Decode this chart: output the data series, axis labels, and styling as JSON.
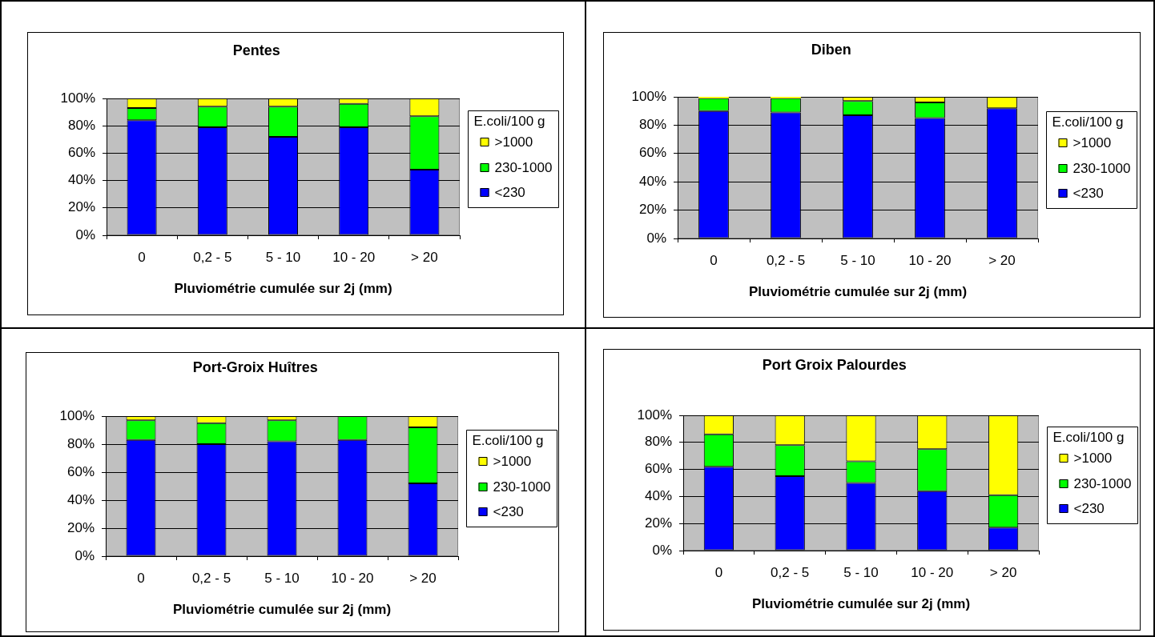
{
  "chart_data": [
    {
      "type": "bar",
      "title": "Pentes",
      "xlabel": "Pluviométrie cumulée sur 2j (mm)",
      "legend_title": "E.coli/100 g",
      "categories": [
        "0",
        "0,2 - 5",
        "5 - 10",
        "10 - 20",
        "> 20"
      ],
      "series": [
        {
          "name": "<230",
          "color": "#0000ff",
          "values": [
            84,
            79,
            72,
            79,
            48
          ]
        },
        {
          "name": "230-1000",
          "color": "#00ff00",
          "values": [
            9,
            15,
            22,
            17,
            39
          ]
        },
        {
          "name": ">1000",
          "color": "#ffff00",
          "values": [
            7,
            6,
            6,
            4,
            13
          ]
        }
      ],
      "stacked": true,
      "ylim": [
        0,
        100
      ],
      "yticks": [
        {
          "value": 0,
          "label": "0%"
        },
        {
          "value": 20,
          "label": "20%"
        },
        {
          "value": 40,
          "label": "40%"
        },
        {
          "value": 60,
          "label": "60%"
        },
        {
          "value": 80,
          "label": "80%"
        },
        {
          "value": 100,
          "label": "100%"
        }
      ],
      "grid": "y",
      "legend": "right"
    },
    {
      "type": "bar",
      "title": "Diben",
      "xlabel": "Pluviométrie cumulée sur 2j (mm)",
      "legend_title": "E.coli/100 g",
      "categories": [
        "0",
        "0,2 - 5",
        "5 - 10",
        "10 - 20",
        "> 20"
      ],
      "series": [
        {
          "name": "<230",
          "color": "#0000ff",
          "values": [
            90,
            89,
            87,
            85,
            92
          ]
        },
        {
          "name": "230-1000",
          "color": "#00ff00",
          "values": [
            9,
            10,
            10,
            11,
            0
          ]
        },
        {
          "name": ">1000",
          "color": "#ffff00",
          "values": [
            1,
            1,
            3,
            4,
            8
          ]
        }
      ],
      "stacked": true,
      "ylim": [
        0,
        100
      ],
      "yticks": [
        {
          "value": 0,
          "label": "0%"
        },
        {
          "value": 20,
          "label": "20%"
        },
        {
          "value": 40,
          "label": "40%"
        },
        {
          "value": 60,
          "label": "60%"
        },
        {
          "value": 80,
          "label": "80%"
        },
        {
          "value": 100,
          "label": "100%"
        }
      ],
      "grid": "y",
      "legend": "right"
    },
    {
      "type": "bar",
      "title": "Port-Groix Huîtres",
      "xlabel": "Pluviométrie cumulée sur 2j (mm)",
      "legend_title": "E.coli/100 g",
      "categories": [
        "0",
        "0,2 - 5",
        "5 - 10",
        "10 - 20",
        "> 20"
      ],
      "series": [
        {
          "name": "<230",
          "color": "#0000ff",
          "values": [
            83,
            80,
            82,
            83,
            52
          ]
        },
        {
          "name": "230-1000",
          "color": "#00ff00",
          "values": [
            14,
            15,
            15,
            17,
            40
          ]
        },
        {
          "name": ">1000",
          "color": "#ffff00",
          "values": [
            3,
            5,
            3,
            0,
            8
          ]
        }
      ],
      "stacked": true,
      "ylim": [
        0,
        100
      ],
      "yticks": [
        {
          "value": 0,
          "label": "0%"
        },
        {
          "value": 20,
          "label": "20%"
        },
        {
          "value": 40,
          "label": "40%"
        },
        {
          "value": 60,
          "label": "60%"
        },
        {
          "value": 80,
          "label": "80%"
        },
        {
          "value": 100,
          "label": "100%"
        }
      ],
      "grid": "y",
      "legend": "right"
    },
    {
      "type": "bar",
      "title": "Port Groix Palourdes",
      "xlabel": "Pluviométrie cumulée sur 2j (mm)",
      "legend_title": "E.coli/100 g",
      "categories": [
        "0",
        "0,2 - 5",
        "5 - 10",
        "10 - 20",
        "> 20"
      ],
      "series": [
        {
          "name": "<230",
          "color": "#0000ff",
          "values": [
            62,
            55,
            50,
            44,
            17
          ]
        },
        {
          "name": "230-1000",
          "color": "#00ff00",
          "values": [
            24,
            23,
            16,
            31,
            24
          ]
        },
        {
          "name": ">1000",
          "color": "#ffff00",
          "values": [
            14,
            22,
            34,
            25,
            59
          ]
        }
      ],
      "stacked": true,
      "ylim": [
        0,
        100
      ],
      "yticks": [
        {
          "value": 0,
          "label": "0%"
        },
        {
          "value": 20,
          "label": "20%"
        },
        {
          "value": 40,
          "label": "40%"
        },
        {
          "value": 60,
          "label": "60%"
        },
        {
          "value": 80,
          "label": "80%"
        },
        {
          "value": 100,
          "label": "100%"
        }
      ],
      "grid": "y",
      "legend": "right"
    }
  ]
}
